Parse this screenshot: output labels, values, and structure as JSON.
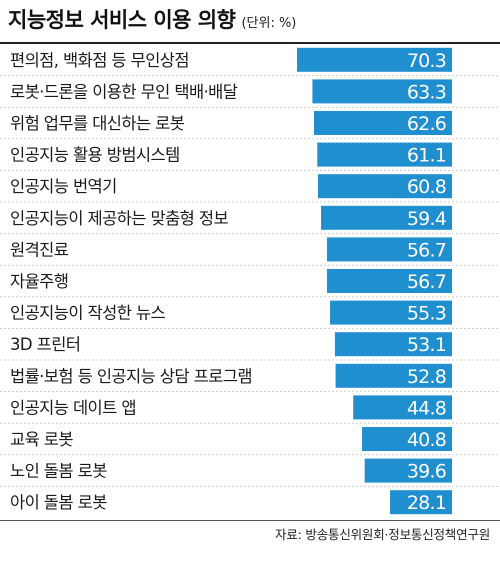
{
  "header": {
    "title": "지능정보 서비스 이용 의향",
    "unit": "(단위: %)"
  },
  "chart_data": {
    "type": "bar",
    "orientation": "horizontal",
    "title": "지능정보 서비스 이용 의향",
    "unit": "(단위: %)",
    "categories": [
      "편의점, 백화점 등 무인상점",
      "로봇·드론을 이용한 무인 택배·배달",
      "위험 업무를 대신하는 로봇",
      "인공지능 활용 방범시스템",
      "인공지능 번역기",
      "인공지능이 제공하는 맞춤형 정보",
      "원격진료",
      "자율주행",
      "인공지능이 작성한 뉴스",
      "3D 프린터",
      "법률·보험 등 인공지능 상담 프로그램",
      "인공지능 데이트 앱",
      "교육 로봇",
      "노인 돌봄 로봇",
      "아이 돌봄 로봇"
    ],
    "values": [
      70.3,
      63.3,
      62.6,
      61.1,
      60.8,
      59.4,
      56.7,
      56.7,
      55.3,
      53.1,
      52.8,
      44.8,
      40.8,
      39.6,
      28.1
    ],
    "value_labels": [
      "70.3",
      "63.3",
      "62.6",
      "61.1",
      "60.8",
      "59.4",
      "56.7",
      "56.7",
      "55.3",
      "53.1",
      "52.8",
      "44.8",
      "40.8",
      "39.6",
      "28.1"
    ],
    "xlim": [
      0,
      70.3
    ],
    "grid": false,
    "legend": "none",
    "colors": {
      "bar": "#1f8fcf",
      "value_text": "#ffffff",
      "separator": "#cfcfcf"
    }
  },
  "source": "자료: 방송통신위원회·정보통신정책연구원"
}
